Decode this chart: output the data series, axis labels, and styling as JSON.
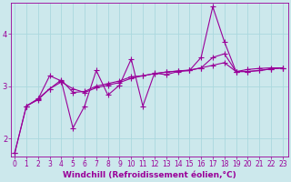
{
  "background_color": "#cce8ec",
  "line_color": "#990099",
  "marker": "+",
  "marker_size": 4,
  "linewidth": 0.8,
  "xlabel": "Windchill (Refroidissement éolien,°C)",
  "xlabel_fontsize": 6.5,
  "xlabel_color": "#990099",
  "xlabel_bold": true,
  "ylabel_ticks": [
    2,
    3,
    4
  ],
  "xtick_labels": [
    "0",
    "1",
    "2",
    "3",
    "4",
    "5",
    "6",
    "7",
    "8",
    "9",
    "10",
    "11",
    "12",
    "13",
    "14",
    "15",
    "16",
    "17",
    "18",
    "19",
    "20",
    "21",
    "22",
    "23"
  ],
  "xlim": [
    -0.3,
    23.5
  ],
  "ylim": [
    1.65,
    4.6
  ],
  "tick_color": "#990099",
  "tick_fontsize": 5.5,
  "grid_color": "#aad8de",
  "series1_x": [
    0,
    1,
    2,
    3,
    4,
    5,
    6,
    7,
    8,
    9,
    10,
    11,
    12,
    13,
    14,
    15,
    16,
    17,
    18,
    19,
    20,
    21,
    22,
    23
  ],
  "series1_y": [
    1.72,
    2.62,
    2.75,
    3.2,
    3.1,
    2.2,
    2.62,
    3.3,
    2.83,
    3.02,
    3.52,
    2.62,
    3.25,
    3.22,
    3.28,
    3.3,
    3.55,
    4.52,
    3.85,
    3.28,
    3.32,
    3.34,
    3.35,
    3.35
  ],
  "series2_x": [
    0,
    1,
    2,
    3,
    4,
    5,
    6,
    7,
    8,
    9,
    10,
    11,
    12,
    13,
    14,
    15,
    16,
    17,
    18,
    19,
    20,
    21,
    22,
    23
  ],
  "series2_y": [
    1.72,
    2.62,
    2.76,
    2.95,
    3.12,
    2.88,
    2.9,
    3.0,
    3.05,
    3.1,
    3.18,
    3.2,
    3.24,
    3.27,
    3.29,
    3.3,
    3.35,
    3.55,
    3.62,
    3.28,
    3.28,
    3.3,
    3.33,
    3.35
  ],
  "series3_x": [
    1,
    2,
    3,
    4,
    5,
    6,
    7,
    8,
    9,
    10,
    11,
    12,
    13,
    14,
    15,
    16,
    17,
    18,
    19,
    20,
    21,
    22,
    23
  ],
  "series3_y": [
    2.62,
    2.74,
    2.95,
    3.08,
    2.95,
    2.88,
    2.97,
    3.02,
    3.07,
    3.15,
    3.2,
    3.24,
    3.27,
    3.29,
    3.31,
    3.35,
    3.4,
    3.45,
    3.28,
    3.28,
    3.3,
    3.33,
    3.35
  ]
}
